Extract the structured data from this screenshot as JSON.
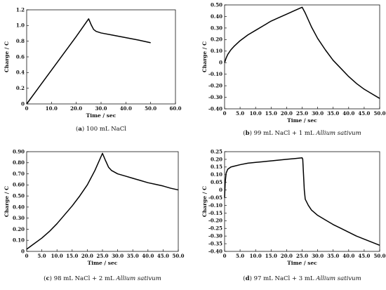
{
  "chart_data": [
    {
      "type": "line",
      "caption": {
        "letter": "a",
        "text": "100 mL NaCl",
        "italic": ""
      },
      "xlabel": "Time / sec",
      "ylabel": "Charge / C",
      "xlim": [
        0,
        60
      ],
      "ylim": [
        0,
        1.2
      ],
      "xticks": [
        "0",
        "10.0",
        "20.0",
        "30.0",
        "40.0",
        "50.0",
        "60.0"
      ],
      "yticks": [
        "0",
        "0.2",
        "0.4",
        "0.6",
        "0.8",
        "1.0",
        "1.2"
      ],
      "series": [
        {
          "x": [
            0,
            5,
            10,
            15,
            20,
            25,
            26,
            27,
            28,
            30,
            35,
            40,
            45,
            50
          ],
          "y": [
            0,
            0.215,
            0.43,
            0.645,
            0.86,
            1.085,
            1.01,
            0.95,
            0.925,
            0.905,
            0.875,
            0.845,
            0.815,
            0.78
          ]
        }
      ]
    },
    {
      "type": "line",
      "caption": {
        "letter": "b",
        "text": "99 mL NaCl + 1 mL ",
        "italic": "Allium sativum"
      },
      "xlabel": "Time / sec",
      "ylabel": "Charge / C",
      "xlim": [
        0,
        50
      ],
      "ylim": [
        -0.4,
        0.5
      ],
      "xticks": [
        "0",
        "5.0",
        "10.0",
        "15.0",
        "20.0",
        "25.0",
        "30.0",
        "35.0",
        "40.0",
        "45.0",
        "50.0"
      ],
      "yticks": [
        "-0.40",
        "-0.30",
        "-0.20",
        "-0.10",
        "0",
        "0.10",
        "0.20",
        "0.30",
        "0.40",
        "0.50"
      ],
      "series": [
        {
          "x": [
            0,
            0.5,
            1,
            2,
            3,
            5,
            7.5,
            10,
            12.5,
            15,
            17.5,
            20,
            22.5,
            25,
            26,
            27,
            28,
            30,
            32.5,
            35,
            37.5,
            40,
            42.5,
            45,
            47.5,
            50
          ],
          "y": [
            0,
            0.04,
            0.07,
            0.11,
            0.14,
            0.19,
            0.24,
            0.28,
            0.32,
            0.36,
            0.39,
            0.42,
            0.45,
            0.48,
            0.43,
            0.37,
            0.31,
            0.21,
            0.11,
            0.02,
            -0.05,
            -0.12,
            -0.18,
            -0.23,
            -0.27,
            -0.31
          ]
        }
      ]
    },
    {
      "type": "line",
      "caption": {
        "letter": "c",
        "text": "98 mL NaCl + 2 mL ",
        "italic": "Allium sativum"
      },
      "xlabel": "Time / sec",
      "ylabel": "Charge / C",
      "xlim": [
        0,
        50
      ],
      "ylim": [
        0,
        0.9
      ],
      "xticks": [
        "0",
        "5.0",
        "10.0",
        "15.0",
        "20.0",
        "25.0",
        "30.0",
        "35.0",
        "40.0",
        "45.0",
        "50.0"
      ],
      "yticks": [
        "0",
        "0.10",
        "0.20",
        "0.30",
        "0.40",
        "0.50",
        "0.60",
        "0.70",
        "0.80",
        "0.90"
      ],
      "series": [
        {
          "x": [
            0,
            2,
            5,
            7.5,
            10,
            12.5,
            15,
            17.5,
            20,
            22.5,
            25,
            26,
            27,
            28,
            30,
            32.5,
            35,
            37.5,
            40,
            42.5,
            45,
            47.5,
            50
          ],
          "y": [
            0.02,
            0.06,
            0.12,
            0.18,
            0.25,
            0.33,
            0.41,
            0.5,
            0.6,
            0.73,
            0.885,
            0.82,
            0.76,
            0.73,
            0.7,
            0.68,
            0.66,
            0.64,
            0.62,
            0.605,
            0.59,
            0.57,
            0.555
          ]
        }
      ]
    },
    {
      "type": "line",
      "caption": {
        "letter": "d",
        "text": "97 mL NaCl + 3 mL ",
        "italic": "Allium sativum"
      },
      "xlabel": "Time / sec",
      "ylabel": "Charge / C",
      "xlim": [
        0,
        50
      ],
      "ylim": [
        -0.4,
        0.25
      ],
      "xticks": [
        "0",
        "5.0",
        "10.0",
        "15.0",
        "20.0",
        "25.0",
        "30.0",
        "35.0",
        "40.0",
        "45.0",
        "50.0"
      ],
      "yticks": [
        "-0.40",
        "-0.35",
        "-0.30",
        "-0.25",
        "-0.20",
        "-0.15",
        "-0.10",
        "-0.05",
        "0",
        "0.05",
        "0.10",
        "0.15",
        "0.20",
        "0.25"
      ],
      "series": [
        {
          "x": [
            0,
            0.2,
            0.5,
            1,
            2,
            3,
            5,
            7.5,
            10,
            12.5,
            15,
            17.5,
            20,
            22.5,
            25,
            25.2,
            25.4,
            25.7,
            26,
            27,
            28,
            30,
            32.5,
            35,
            37.5,
            40,
            42.5,
            45,
            47.5,
            50
          ],
          "y": [
            -0.05,
            0.05,
            0.11,
            0.135,
            0.15,
            0.155,
            0.165,
            0.175,
            0.18,
            0.185,
            0.19,
            0.195,
            0.2,
            0.205,
            0.21,
            0.2,
            0.12,
            0.0,
            -0.06,
            -0.1,
            -0.13,
            -0.165,
            -0.195,
            -0.225,
            -0.25,
            -0.275,
            -0.3,
            -0.32,
            -0.34,
            -0.36
          ]
        }
      ]
    }
  ]
}
